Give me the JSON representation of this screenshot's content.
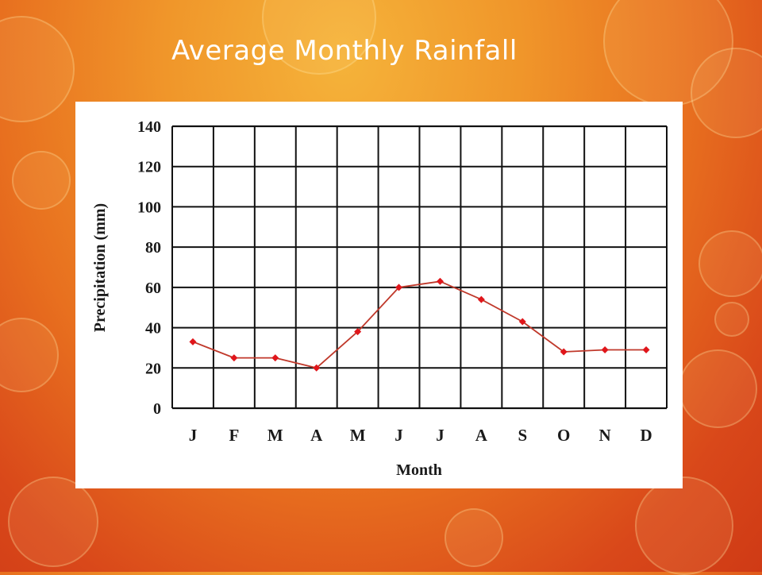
{
  "slide": {
    "title": "Average Monthly Rainfall"
  },
  "chart_data": {
    "type": "line",
    "categories": [
      "J",
      "F",
      "M",
      "A",
      "M",
      "J",
      "J",
      "A",
      "S",
      "O",
      "N",
      "D"
    ],
    "values": [
      33,
      25,
      25,
      20,
      38,
      60,
      63,
      54,
      43,
      28,
      29,
      29
    ],
    "title": "",
    "xlabel": "Month",
    "ylabel": "Precipitation (mm)",
    "ylim": [
      0,
      140
    ],
    "yticks": [
      0,
      20,
      40,
      60,
      80,
      100,
      120,
      140
    ],
    "grid": true,
    "line_color": "#c0392b",
    "marker_color": "#e0161b"
  }
}
